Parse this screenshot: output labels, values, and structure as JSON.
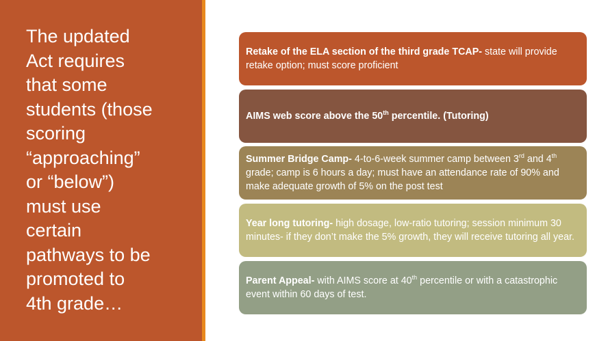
{
  "title_lines": [
    "The updated",
    "Act requires",
    "that some",
    "students (those",
    "scoring",
    "“approaching”",
    "or “below”)",
    "must use",
    "certain",
    "pathways to be",
    "promoted to",
    "4th grade…"
  ],
  "colors": {
    "left_panel": "#bc562c",
    "stripe": "#e8891e",
    "box1": "#bc562c",
    "box2": "#855540",
    "box3": "#9c8456",
    "box4": "#c2bb80",
    "box5": "#939f86"
  },
  "items": [
    {
      "bold": "Retake of the ELA section of the third grade TCAP-",
      "t1": " state will provide retake option; must score proficient"
    },
    {
      "bold": "AIMS web score above the 50",
      "sup1": "th",
      "bold2": " percentile. (Tutoring)"
    },
    {
      "bold": "Summer Bridge Camp-",
      "t1": " 4-to-6-week summer camp between 3",
      "sup1": "rd",
      "t2": " and 4",
      "sup2": "th",
      "t3": " grade; camp is 6 hours a day; must have an attendance rate of 90% and make adequate growth of 5% on the post test"
    },
    {
      "bold": "Year long tutoring-",
      "t1": " high dosage, low-ratio tutoring; session minimum 30 minutes- if they don’t make the 5% growth, they will receive tutoring all year."
    },
    {
      "bold": "Parent Appeal-",
      "t1": " with AIMS score at 40",
      "sup1": "th",
      "t2": " percentile or with a catastrophic event within 60 days of test."
    }
  ]
}
